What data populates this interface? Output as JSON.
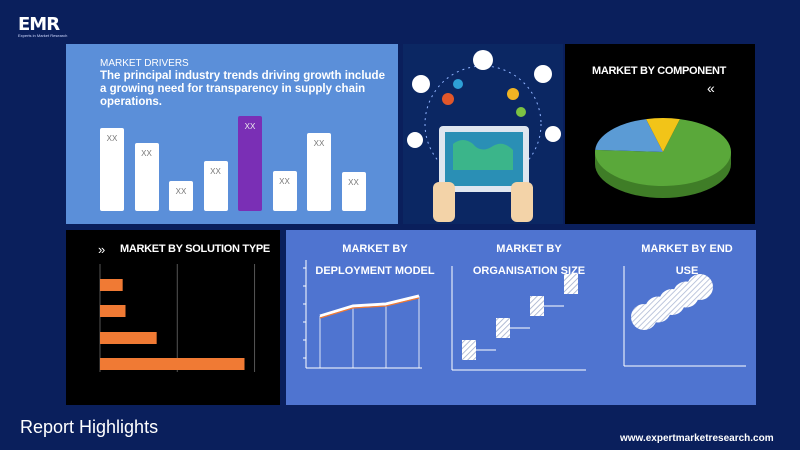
{
  "logo": {
    "text": "EMR",
    "tagline": "Experts in Market Research"
  },
  "drivers": {
    "label": "MARKET DRIVERS",
    "text": "The principal industry trends driving growth include a growing need for transparency in supply chain operations."
  },
  "component": {
    "title": "MARKET BY COMPONENT",
    "arrows": "«"
  },
  "solution": {
    "title": "MARKET BY SOLUTION TYPE",
    "arrows": "»"
  },
  "deployment": {
    "title": "MARKET BY DEPLOYMENT MODEL"
  },
  "organisation": {
    "title": "MARKET BY ORGANISATION SIZE"
  },
  "end_use": {
    "title": "MARKET BY END USE"
  },
  "footer": {
    "title": "Report Highlights",
    "url": "www.expertmarketresearch.com"
  },
  "colors": {
    "background": "#0a1f5c",
    "drivers_panel": "#5b8fd9",
    "highlight_bar": "#7a2fb5",
    "solution_bar": "#f07a34",
    "pie_green": "#5aa83a",
    "pie_blue": "#5b9bd5",
    "pie_yellow": "#f2c418"
  },
  "chart_data": [
    {
      "type": "bar",
      "categories": [
        "XX",
        "XX",
        "XX",
        "XX",
        "XX",
        "XX",
        "XX",
        "XX"
      ],
      "values": [
        70,
        57,
        25,
        42,
        80,
        34,
        66,
        33
      ],
      "highlight_index": 4,
      "data_labels": [
        "XX",
        "XX",
        "XX",
        "XX",
        "XX",
        "XX",
        "XX",
        "XX"
      ]
    },
    {
      "type": "pie",
      "values": [
        72,
        20,
        8
      ],
      "colors": [
        "#5aa83a",
        "#5b9bd5",
        "#f2c418"
      ],
      "style": "3d"
    },
    {
      "type": "bar",
      "orientation": "horizontal",
      "values": [
        8,
        9,
        20,
        51
      ],
      "xlim": [
        0,
        60
      ]
    },
    {
      "type": "line",
      "x": [
        1,
        2,
        3,
        4
      ],
      "values": [
        52,
        62,
        64,
        72
      ],
      "ylim": [
        0,
        100
      ]
    },
    {
      "type": "bar",
      "style": "step",
      "values": [
        1,
        2,
        3,
        4
      ]
    },
    {
      "type": "scatter",
      "style": "bubble",
      "points": [
        [
          1,
          2
        ],
        [
          2,
          3
        ],
        [
          3,
          4
        ],
        [
          4,
          5
        ],
        [
          5,
          6
        ]
      ]
    }
  ]
}
